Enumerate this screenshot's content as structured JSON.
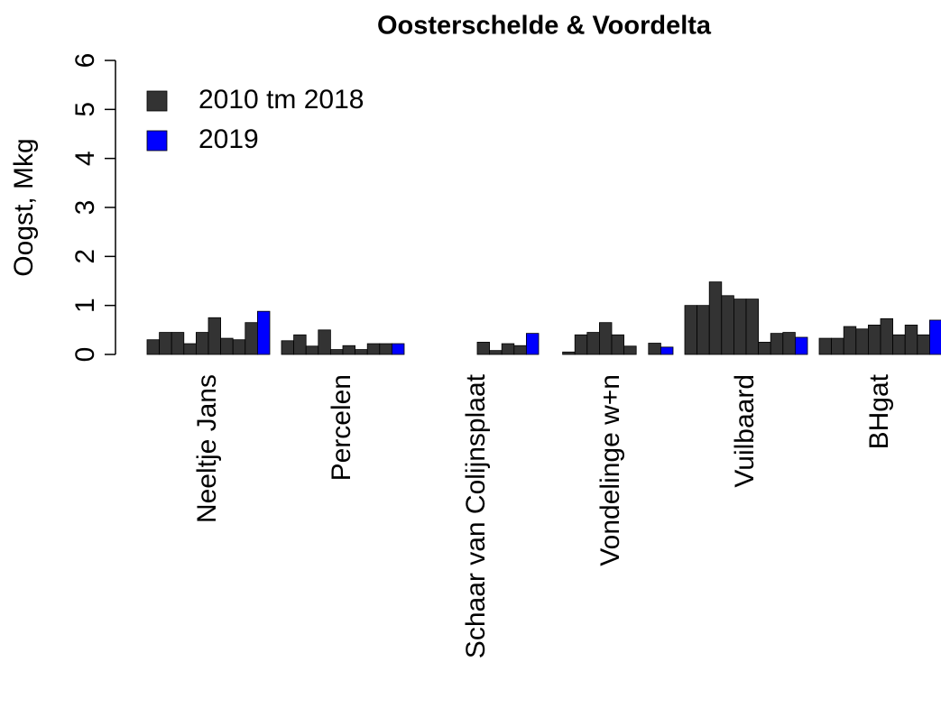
{
  "chart_data": {
    "type": "bar",
    "title": "Oosterschelde & Voordelta",
    "y_label": "Oogst, Mkg",
    "categories": [
      "Neeltje Jans",
      "Percelen",
      "Schaar van Colijnsplaat",
      "Vondelinge w+n",
      "Vuilbaard",
      "BHgat"
    ],
    "series": [
      {
        "name": "2010 tm 2018",
        "color": "#333333",
        "values": [
          [
            0.3,
            0.45,
            0.45,
            0.22,
            0.45,
            0.75,
            0.33,
            0.3,
            0.65
          ],
          [
            0.28,
            0.4,
            0.17,
            0.5,
            0.1,
            0.18,
            0.1,
            0.22,
            0.22
          ],
          [
            0,
            0,
            0,
            0,
            0,
            0.25,
            0.08,
            0.22,
            0.18
          ],
          [
            0,
            0.05,
            0.4,
            0.45,
            0.65,
            0.4,
            0.17,
            0,
            0.23
          ],
          [
            1.0,
            1.0,
            1.48,
            1.2,
            1.13,
            1.13,
            0.25,
            0.43,
            0.45
          ],
          [
            0.33,
            0.33,
            0.57,
            0.52,
            0.6,
            0.73,
            0.4,
            0.6,
            0.4
          ]
        ]
      },
      {
        "name": "2019",
        "color": "#0000ff",
        "values": [
          0.88,
          0.22,
          0.43,
          0.15,
          0.35,
          0.7
        ]
      }
    ],
    "ylim": [
      0,
      6
    ],
    "yticks": [
      0,
      1,
      2,
      3,
      4,
      5,
      6
    ],
    "legend": "top-left"
  }
}
